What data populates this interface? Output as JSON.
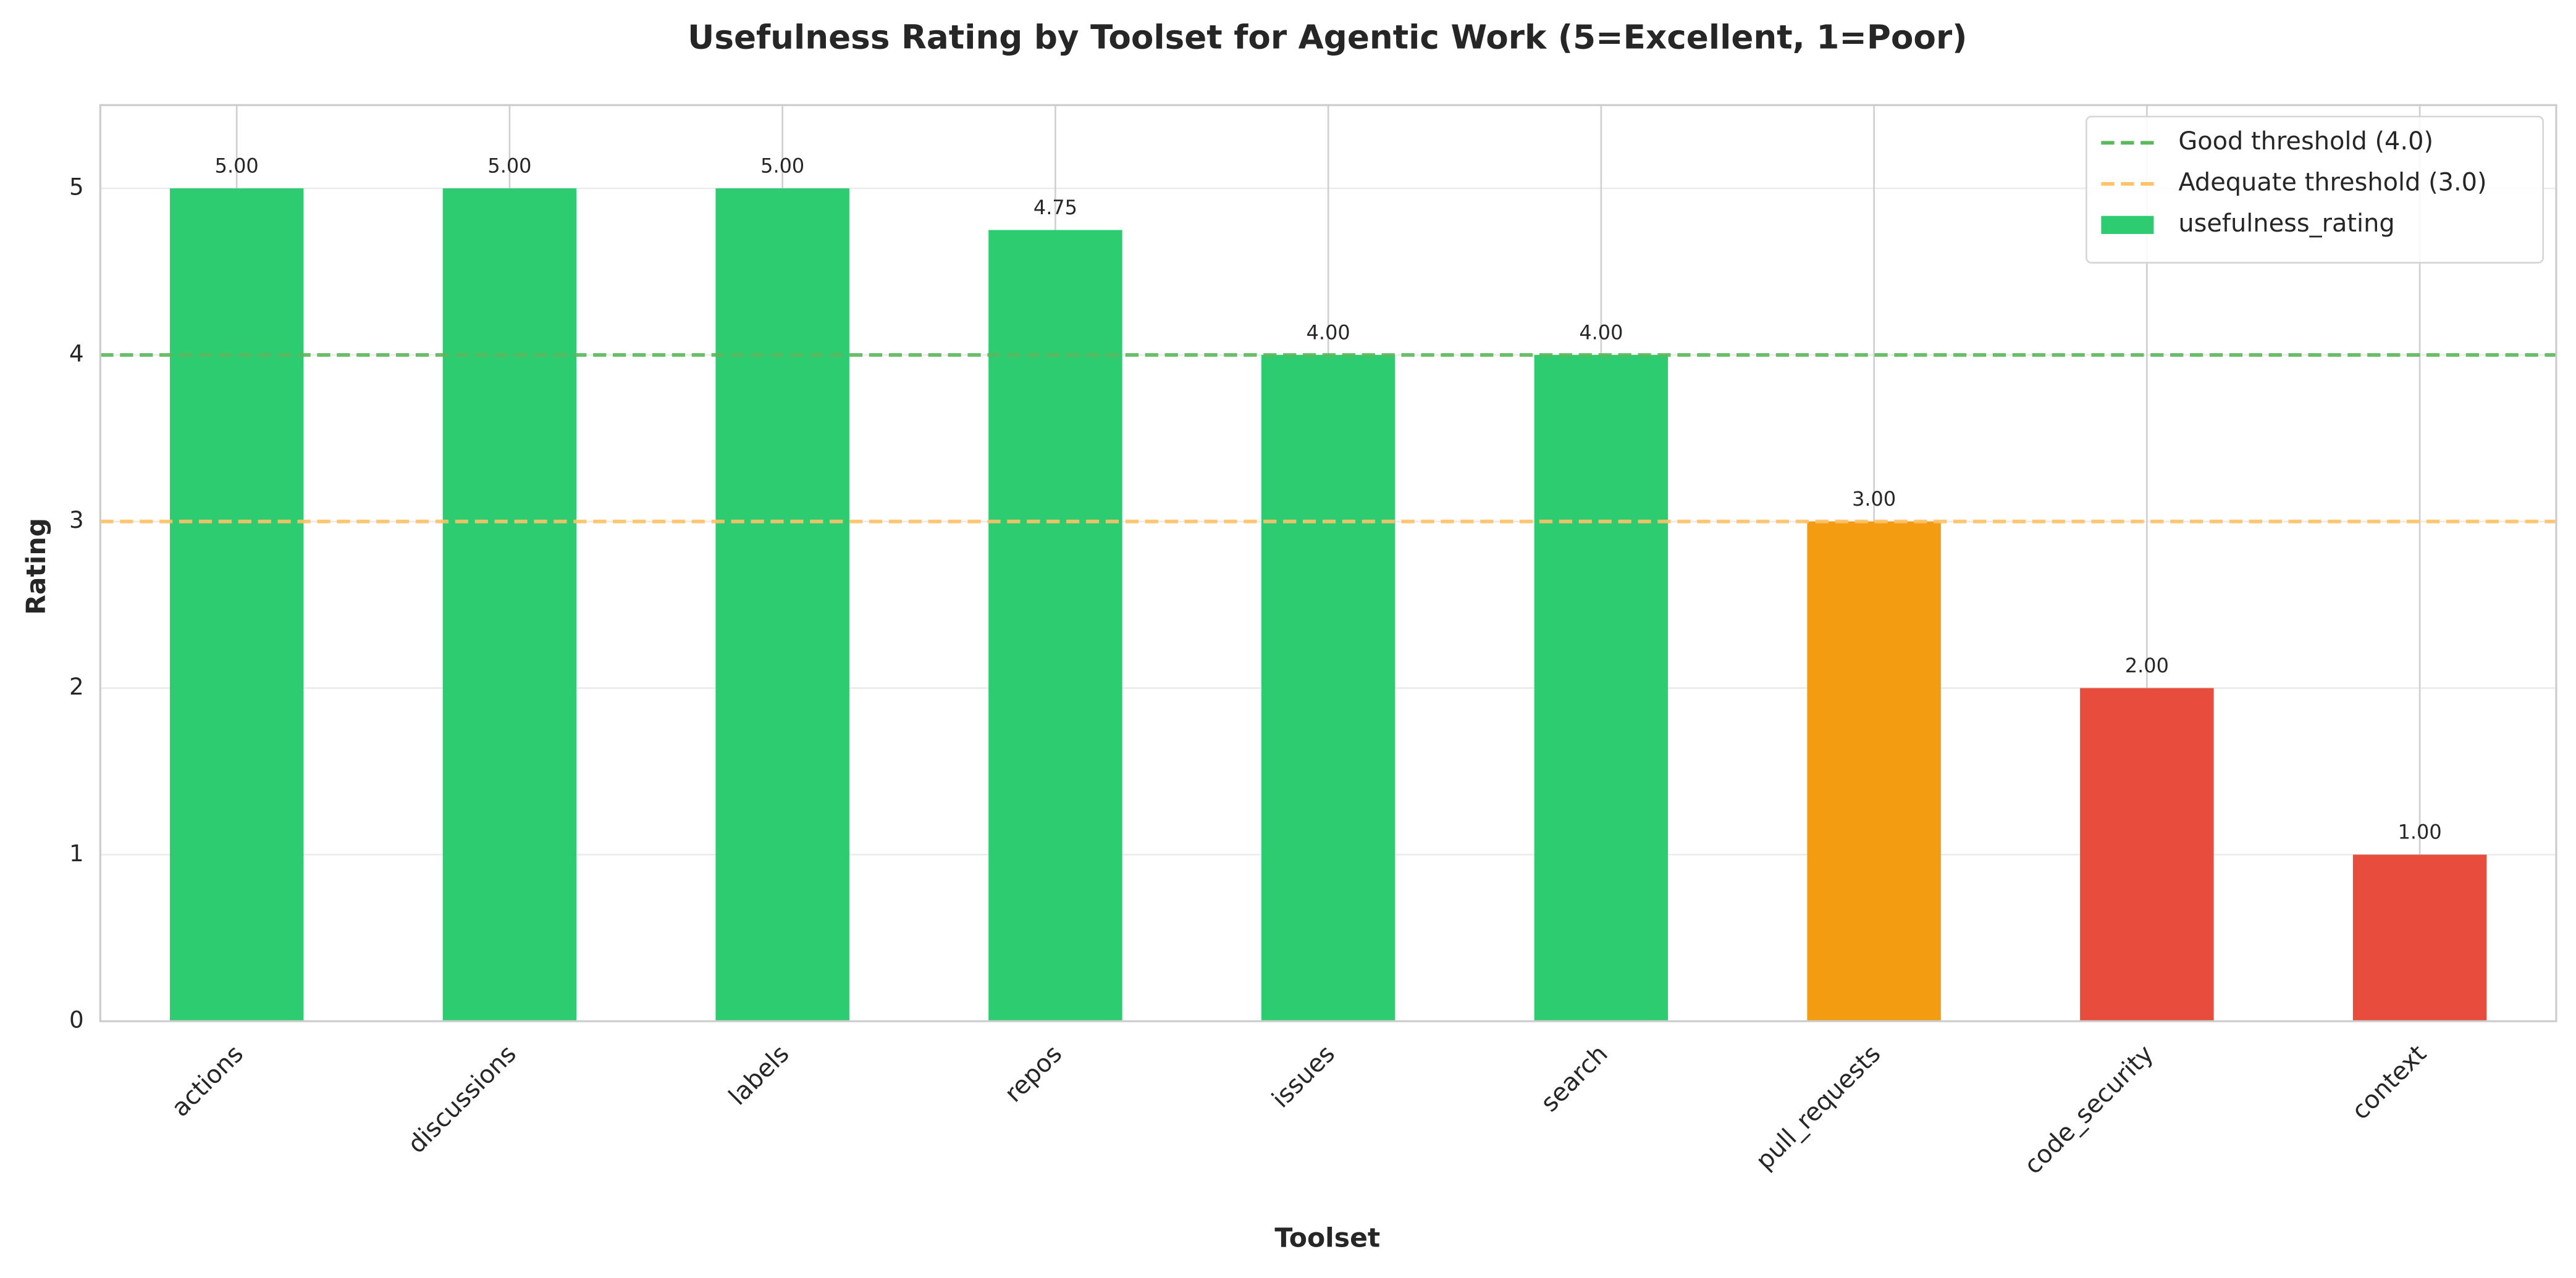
{
  "chart_data": {
    "type": "bar",
    "title": "Usefulness Rating by Toolset for Agentic Work (5=Excellent, 1=Poor)",
    "x_label": "Toolset",
    "y_label": "Rating",
    "categories": [
      "actions",
      "discussions",
      "labels",
      "repos",
      "issues",
      "search",
      "pull_requests",
      "code_security",
      "context"
    ],
    "series": [
      {
        "name": "usefulness_rating",
        "color": "#2ecc71",
        "colors": [
          "#2ecc71",
          "#2ecc71",
          "#2ecc71",
          "#2ecc71",
          "#2ecc71",
          "#2ecc71",
          "#f39c12",
          "#e74c3c",
          "#e74c3c"
        ],
        "values": [
          5,
          5,
          5,
          4.75,
          4,
          4,
          3,
          2,
          1
        ],
        "value_labels": [
          "5.00",
          "5.00",
          "5.00",
          "4.75",
          "4.00",
          "4.00",
          "3.00",
          "2.00",
          "1.00"
        ]
      }
    ],
    "reference_lines": [
      {
        "value": 4,
        "label": "Good threshold (4.0)",
        "color": "#5cb85c"
      },
      {
        "value": 3,
        "label": "Adequate threshold (3.0)",
        "color": "#ffc266"
      }
    ],
    "ylim": [
      0,
      5.5
    ],
    "yticks": [
      0,
      1,
      2,
      3,
      4,
      5
    ],
    "grid": true,
    "legend": "upper right"
  }
}
